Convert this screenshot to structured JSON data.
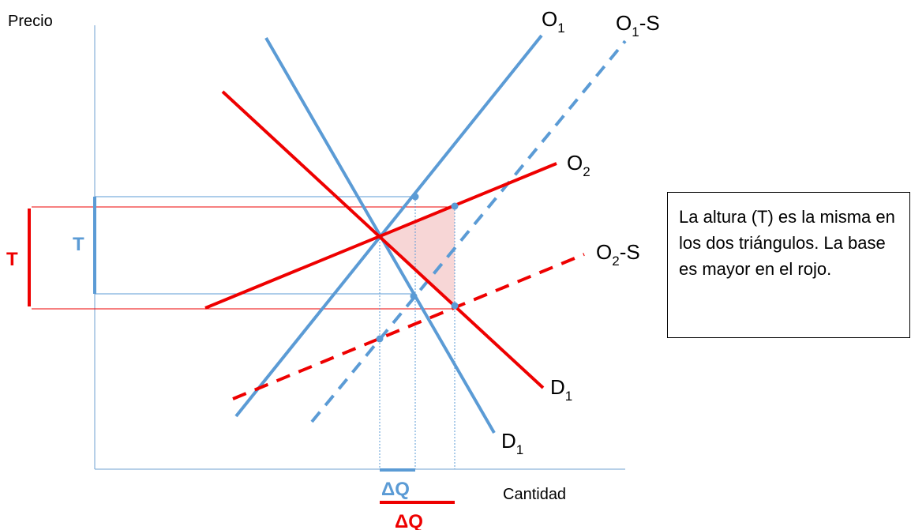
{
  "axes": {
    "y_label": "Precio",
    "x_label": "Cantidad"
  },
  "curves": {
    "O1": {
      "label": "O",
      "sub": "1",
      "suffix": ""
    },
    "O1S": {
      "label": "O",
      "sub": "1",
      "suffix": "-S"
    },
    "O2": {
      "label": "O",
      "sub": "2",
      "suffix": ""
    },
    "O2S": {
      "label": "O",
      "sub": "2",
      "suffix": "-S"
    },
    "D1_red": {
      "label": "D",
      "sub": "1",
      "suffix": ""
    },
    "D1_blue": {
      "label": "D",
      "sub": "1",
      "suffix": ""
    }
  },
  "markers": {
    "tax_blue": "T",
    "tax_red": "T",
    "dq_blue": "ΔQ",
    "dq_red": "ΔQ"
  },
  "note": {
    "text": "La altura (T)  es la misma en los dos triángulos. La base es mayor en el rojo."
  },
  "colors": {
    "blue": "#5b9bd5",
    "red": "#ee0000",
    "triangle_fill": "#f7d6d6",
    "axis": "#6fa0d0"
  }
}
